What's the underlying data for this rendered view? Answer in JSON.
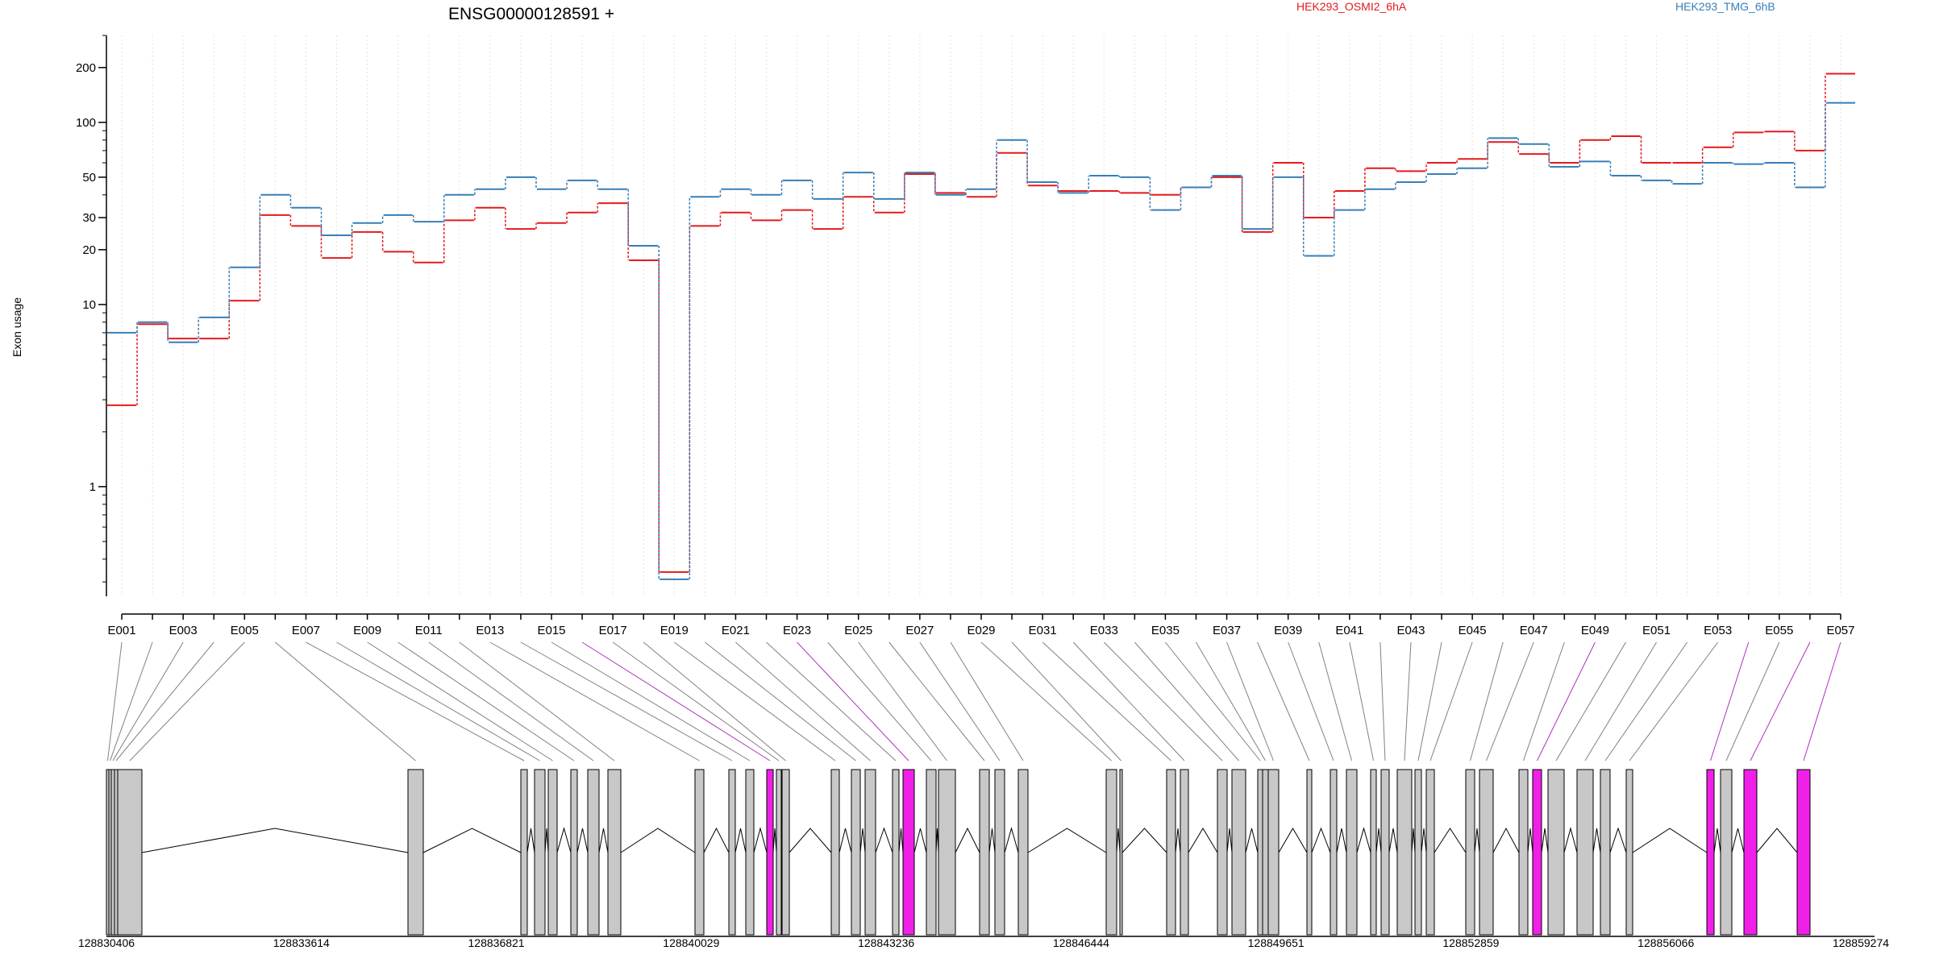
{
  "header": {
    "gene_label": "ENSG00000128591 +",
    "legend_labels": [
      "HEK293_OSMI2_6hA",
      "HEK293_TMG_6hB"
    ],
    "legend_placement": "top-right"
  },
  "colors": {
    "series_a": "#e41a1c",
    "series_b": "#377eb8",
    "exon_normal": "#c8c8c8",
    "exon_significant": "#f020e8",
    "guide_significant": "#b030c0",
    "guide_normal": "#808080",
    "outline": "#000000"
  },
  "chart_data": {
    "type": "line",
    "style": "step",
    "ylabel": "Exon usage",
    "yscale": "log",
    "ylim": [
      0.25,
      300
    ],
    "yticks": [
      1,
      10,
      20,
      30,
      50,
      100,
      200
    ],
    "grid": "vertical dotted",
    "exons": [
      "E001",
      "E002",
      "E003",
      "E004",
      "E005",
      "E006",
      "E007",
      "E008",
      "E009",
      "E010",
      "E011",
      "E012",
      "E013",
      "E014",
      "E015",
      "E016",
      "E017",
      "E018",
      "E019",
      "E020",
      "E021",
      "E022",
      "E023",
      "E024",
      "E025",
      "E026",
      "E027",
      "E028",
      "E029",
      "E030",
      "E031",
      "E032",
      "E033",
      "E034",
      "E035",
      "E036",
      "E037",
      "E038",
      "E039",
      "E040",
      "E041",
      "E042",
      "E043",
      "E044",
      "E045",
      "E046",
      "E047",
      "E048",
      "E049",
      "E050",
      "E051",
      "E052",
      "E053",
      "E054",
      "E055",
      "E056",
      "E057"
    ],
    "xtick_labels": [
      "E001",
      "E003",
      "E005",
      "E007",
      "E009",
      "E011",
      "E013",
      "E015",
      "E017",
      "E019",
      "E021",
      "E023",
      "E025",
      "E027",
      "E029",
      "E031",
      "E033",
      "E035",
      "E037",
      "E039",
      "E041",
      "E043",
      "E045",
      "E047",
      "E049",
      "E051",
      "E053",
      "E055",
      "E057"
    ],
    "series": [
      {
        "name": "HEK293_OSMI2_6hA",
        "values": [
          2.8,
          7.8,
          6.5,
          6.5,
          10.5,
          31,
          27,
          18,
          25,
          19.5,
          17,
          29,
          34,
          26,
          28,
          32,
          36,
          17.5,
          0.34,
          27,
          32,
          29,
          33,
          26,
          39,
          32,
          52,
          41,
          39,
          68,
          45,
          42,
          42,
          41,
          40,
          44,
          50,
          25,
          60,
          30,
          42,
          56,
          54,
          60,
          63,
          78,
          67,
          60,
          80,
          84,
          60,
          60,
          73,
          88,
          89,
          70,
          185
        ]
      },
      {
        "name": "HEK293_TMG_6hB",
        "values": [
          7,
          8,
          6.2,
          8.5,
          16,
          40,
          34,
          24,
          28,
          31,
          28.5,
          40,
          43,
          50,
          43,
          48,
          43,
          21,
          0.31,
          39,
          43,
          40,
          48,
          38,
          53,
          38,
          53,
          40,
          43,
          80,
          47,
          41,
          51,
          50,
          33,
          44,
          51,
          26,
          50,
          18.5,
          33,
          43,
          47,
          52,
          56,
          82,
          76,
          57,
          61,
          51,
          48,
          46,
          60,
          59,
          60,
          44,
          128
        ]
      }
    ],
    "exon_model": {
      "coordinate_labels": [
        "128830406",
        "128833614",
        "128836821",
        "128840029",
        "128843236",
        "128846444",
        "128849651",
        "128852859",
        "128856066",
        "128859274"
      ],
      "significant_exons": [
        "E016",
        "E023",
        "E049",
        "E054",
        "E056",
        "E057"
      ]
    }
  }
}
